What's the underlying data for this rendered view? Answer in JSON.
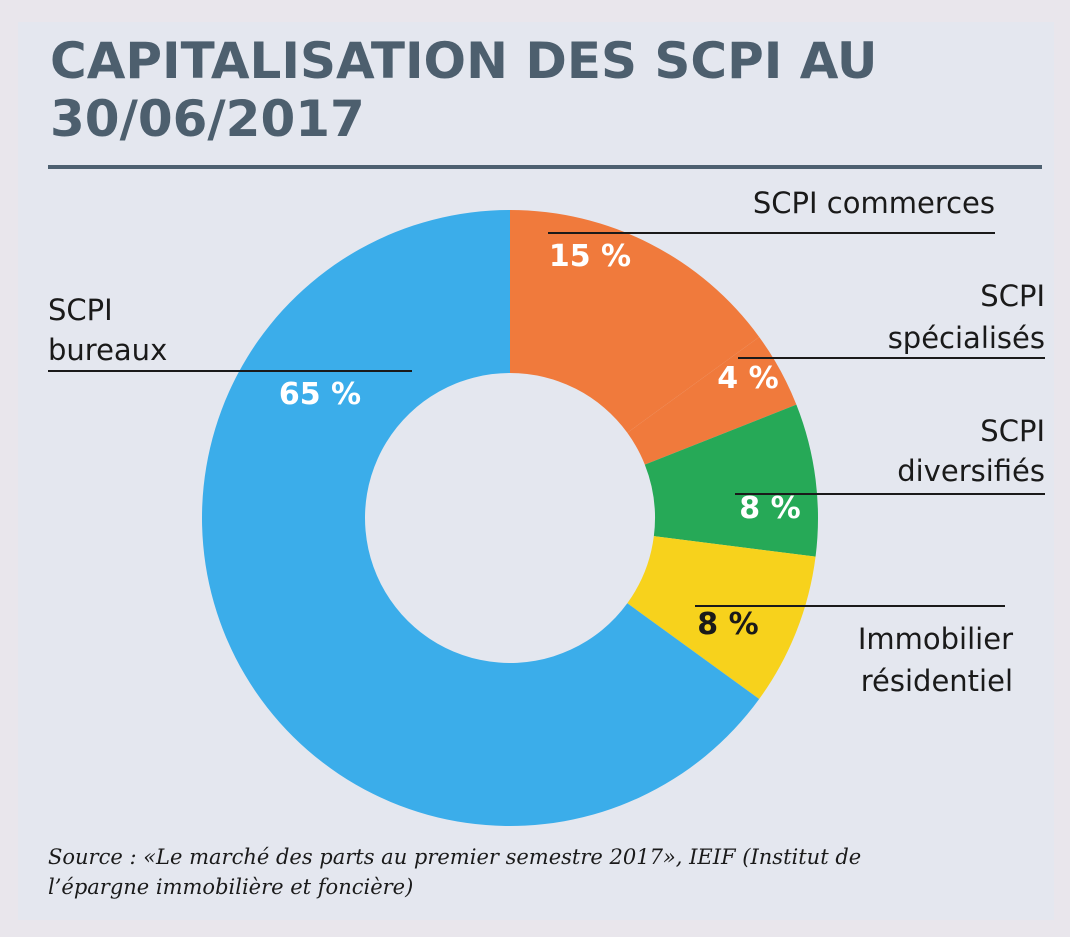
{
  "title_line1": "CAPITALISATION DES SCPI AU",
  "title_line2": "30/06/2017",
  "source_line1": "Source : «Le marché des parts au premier semestre 2017», IEIF (Institut de",
  "source_line2": "l’épargne immobilière et foncière)",
  "chart_data": {
    "type": "pie",
    "donut": true,
    "title": "CAPITALISATION DES SCPI AU 30/06/2017",
    "slices": [
      {
        "label_lines": [
          "SCPI commerces"
        ],
        "value": 15,
        "value_label": "15 %",
        "color": "#f07a3c",
        "value_label_color": "#ffffff"
      },
      {
        "label_lines": [
          "SCPI",
          "spécialisés"
        ],
        "value": 4,
        "value_label": "4 %",
        "color": "#f07a3c",
        "value_label_color": "#ffffff"
      },
      {
        "label_lines": [
          "SCPI",
          "diversifiés"
        ],
        "value": 8,
        "value_label": "8 %",
        "color": "#26a957",
        "value_label_color": "#ffffff"
      },
      {
        "label_lines": [
          "Immobilier",
          "résidentiel"
        ],
        "value": 8,
        "value_label": "8 %",
        "color": "#f7d21c",
        "value_label_color": "#1a1a1a"
      },
      {
        "label_lines": [
          "SCPI",
          "bureaux"
        ],
        "value": 65,
        "value_label": "65 %",
        "color": "#3badea",
        "value_label_color": "#ffffff"
      }
    ],
    "legend": "none"
  }
}
